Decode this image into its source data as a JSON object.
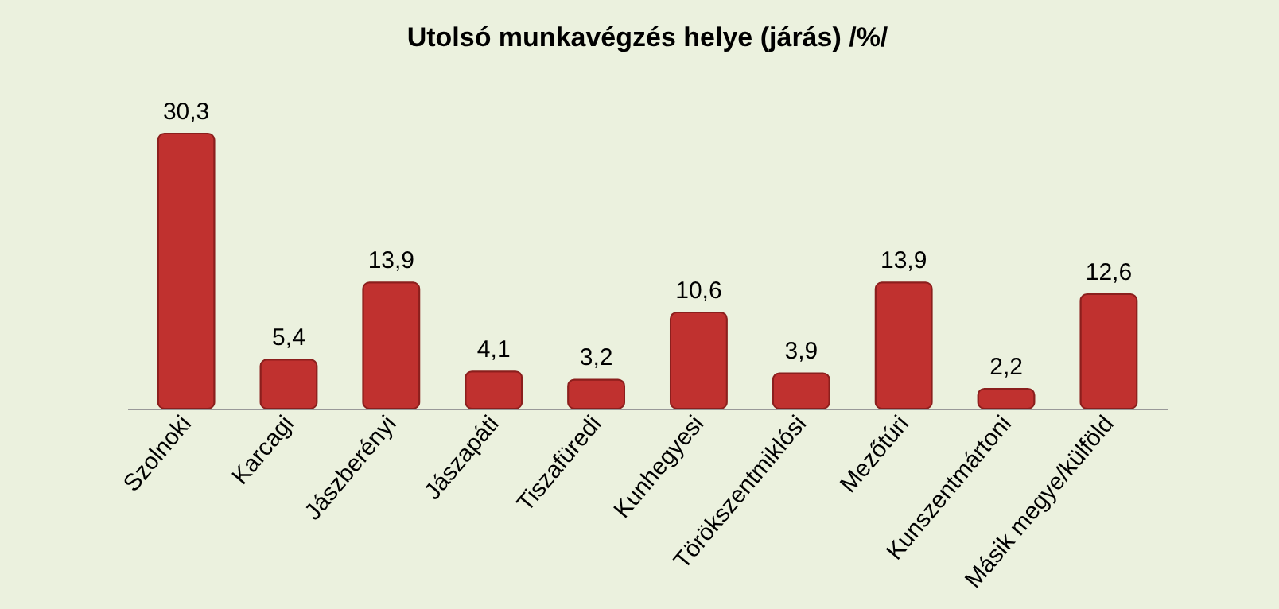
{
  "chart_data": {
    "type": "bar",
    "title": "Utolsó munkavégzés helye (járás)  /%/",
    "categories": [
      "Szolnoki",
      "Karcagi",
      "Jászberényi",
      "Jászapáti",
      "Tiszafüredi",
      "Kunhegyesi",
      "Törökszentmiklósi",
      "Mezőtúri",
      "Kunszentmártoni",
      "Másik megye/külföld"
    ],
    "values": [
      30.3,
      5.4,
      13.9,
      4.1,
      3.2,
      10.6,
      3.9,
      13.9,
      2.2,
      12.6
    ],
    "value_labels": [
      "30,3",
      "5,4",
      "13,9",
      "4,1",
      "3,2",
      "10,6",
      "3,9",
      "13,9",
      "2,2",
      "12,6"
    ],
    "color": "#c0312f"
  }
}
